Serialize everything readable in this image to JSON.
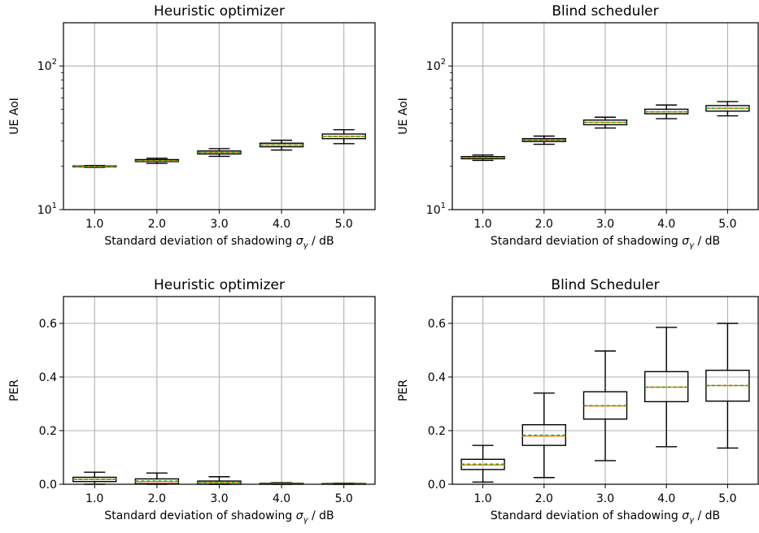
{
  "chart_data": [
    {
      "type": "box",
      "title": "Heuristic optimizer",
      "xlabel": "Standard deviation of shadowing σγ / dB",
      "xlabel_parts": [
        "Standard deviation of shadowing ",
        "σ",
        "γ",
        " / dB"
      ],
      "ylabel": "UE AoI",
      "yscale": "log",
      "ylim": [
        10,
        200
      ],
      "yticks": [
        {
          "v": 10,
          "base": "10",
          "exp": "1"
        },
        {
          "v": 100,
          "base": "10",
          "exp": "2"
        }
      ],
      "grid": true,
      "categories": [
        "1.0",
        "2.0",
        "3.0",
        "4.0",
        "5.0"
      ],
      "boxes": [
        {
          "whislo": 19.7,
          "q1": 19.85,
          "med": 20.0,
          "mean": 20.0,
          "q3": 20.15,
          "whishi": 20.3
        },
        {
          "whislo": 21.0,
          "q1": 21.6,
          "med": 21.9,
          "mean": 21.9,
          "q3": 22.3,
          "whishi": 22.8
        },
        {
          "whislo": 23.5,
          "q1": 24.4,
          "med": 25.0,
          "mean": 25.0,
          "q3": 25.6,
          "whishi": 26.6
        },
        {
          "whislo": 26.0,
          "q1": 27.4,
          "med": 28.2,
          "mean": 28.2,
          "q3": 29.0,
          "whishi": 30.4
        },
        {
          "whislo": 28.8,
          "q1": 31.2,
          "med": 32.3,
          "mean": 32.4,
          "q3": 33.6,
          "whishi": 36.0
        }
      ]
    },
    {
      "type": "box",
      "title": "Blind scheduler",
      "xlabel": "Standard deviation of shadowing σγ / dB",
      "xlabel_parts": [
        "Standard deviation of shadowing ",
        "σ",
        "γ",
        " / dB"
      ],
      "ylabel": "UE AoI",
      "yscale": "log",
      "ylim": [
        10,
        200
      ],
      "yticks": [
        {
          "v": 10,
          "base": "10",
          "exp": "1"
        },
        {
          "v": 100,
          "base": "10",
          "exp": "2"
        }
      ],
      "grid": true,
      "categories": [
        "1.0",
        "2.0",
        "3.0",
        "4.0",
        "5.0"
      ],
      "boxes": [
        {
          "whislo": 22.0,
          "q1": 22.6,
          "med": 23.0,
          "mean": 23.0,
          "q3": 23.4,
          "whishi": 24.0
        },
        {
          "whislo": 28.5,
          "q1": 29.8,
          "med": 30.5,
          "mean": 30.5,
          "q3": 31.2,
          "whishi": 32.5
        },
        {
          "whislo": 37.0,
          "q1": 39.0,
          "med": 40.5,
          "mean": 40.5,
          "q3": 42.0,
          "whishi": 44.0
        },
        {
          "whislo": 43.0,
          "q1": 46.5,
          "med": 48.0,
          "mean": 48.0,
          "q3": 50.0,
          "whishi": 53.5
        },
        {
          "whislo": 45.0,
          "q1": 48.5,
          "med": 50.8,
          "mean": 50.8,
          "q3": 53.0,
          "whishi": 56.5
        }
      ]
    },
    {
      "type": "box",
      "title": "Heuristic optimizer",
      "xlabel": "Standard deviation of shadowing σγ / dB",
      "xlabel_parts": [
        "Standard deviation of shadowing ",
        "σ",
        "γ",
        " / dB"
      ],
      "ylabel": "PER",
      "yscale": "linear",
      "ylim": [
        0,
        0.7
      ],
      "yticks": [
        {
          "v": 0.0,
          "label": "0.0"
        },
        {
          "v": 0.2,
          "label": "0.2"
        },
        {
          "v": 0.4,
          "label": "0.4"
        },
        {
          "v": 0.6,
          "label": "0.6"
        }
      ],
      "grid": true,
      "categories": [
        "1.0",
        "2.0",
        "3.0",
        "4.0",
        "5.0"
      ],
      "boxes": [
        {
          "whislo": 0.0,
          "q1": 0.01,
          "med": 0.018,
          "mean": 0.018,
          "q3": 0.026,
          "whishi": 0.045
        },
        {
          "whislo": 0.0,
          "q1": 0.002,
          "med": 0.01,
          "mean": 0.012,
          "q3": 0.02,
          "whishi": 0.042
        },
        {
          "whislo": 0.0,
          "q1": 0.0,
          "med": 0.006,
          "mean": 0.007,
          "q3": 0.012,
          "whishi": 0.028
        },
        {
          "whislo": 0.0,
          "q1": 0.0,
          "med": 0.002,
          "mean": 0.003,
          "q3": 0.004,
          "whishi": 0.006
        },
        {
          "whislo": 0.0,
          "q1": 0.0,
          "med": 0.001,
          "mean": 0.002,
          "q3": 0.003,
          "whishi": 0.004
        }
      ]
    },
    {
      "type": "box",
      "title": "Blind Scheduler",
      "xlabel": "Standard deviation of shadowing σγ / dB",
      "xlabel_parts": [
        "Standard deviation of shadowing ",
        "σ",
        "γ",
        " / dB"
      ],
      "ylabel": "PER",
      "yscale": "linear",
      "ylim": [
        0,
        0.7
      ],
      "yticks": [
        {
          "v": 0.0,
          "label": "0.0"
        },
        {
          "v": 0.2,
          "label": "0.2"
        },
        {
          "v": 0.4,
          "label": "0.4"
        },
        {
          "v": 0.6,
          "label": "0.6"
        }
      ],
      "grid": true,
      "categories": [
        "1.0",
        "2.0",
        "3.0",
        "4.0",
        "5.0"
      ],
      "boxes": [
        {
          "whislo": 0.008,
          "q1": 0.055,
          "med": 0.072,
          "mean": 0.075,
          "q3": 0.093,
          "whishi": 0.145
        },
        {
          "whislo": 0.025,
          "q1": 0.145,
          "med": 0.18,
          "mean": 0.183,
          "q3": 0.222,
          "whishi": 0.34
        },
        {
          "whislo": 0.088,
          "q1": 0.243,
          "med": 0.292,
          "mean": 0.293,
          "q3": 0.345,
          "whishi": 0.497
        },
        {
          "whislo": 0.14,
          "q1": 0.308,
          "med": 0.362,
          "mean": 0.362,
          "q3": 0.42,
          "whishi": 0.585
        },
        {
          "whislo": 0.135,
          "q1": 0.31,
          "med": 0.368,
          "mean": 0.368,
          "q3": 0.425,
          "whishi": 0.6
        }
      ]
    }
  ],
  "style": {
    "grid_color": "#b0b0b0",
    "median_color": "#ff7f0e",
    "mean_color": "#2ca02c",
    "box_color": "#000000"
  }
}
